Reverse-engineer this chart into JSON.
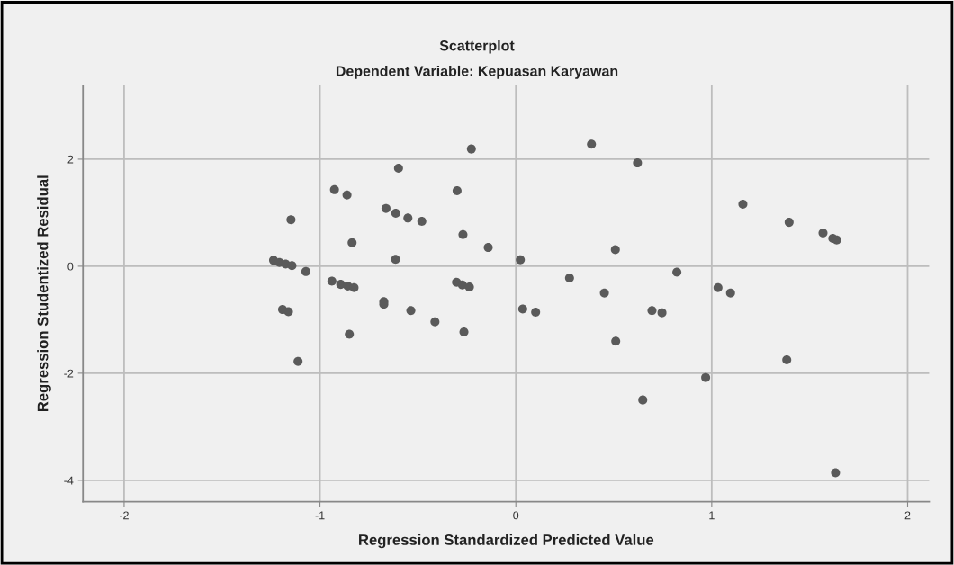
{
  "chart_data": {
    "type": "scatter",
    "title": "Scatterplot",
    "subtitle": "Dependent Variable: Kepuasan Karyawan",
    "xlabel": "Regression Standardized Predicted Value",
    "ylabel": "Regression Studentized Residual",
    "xlim": [
      -2.21,
      2.11
    ],
    "ylim": [
      -4.4,
      3.38
    ],
    "xticks": [
      {
        "value": -2,
        "label": "-2"
      },
      {
        "value": -1,
        "label": "-1"
      },
      0,
      1,
      2
    ],
    "yticks": [
      {
        "value": -4,
        "label": "-4"
      },
      {
        "value": -2,
        "label": "-2"
      },
      0,
      2
    ],
    "grid": true,
    "marker": "circle",
    "series": [
      {
        "color": "#5a5a5a",
        "x": [
          -0.227,
          -0.599,
          -0.926,
          -0.862,
          -0.3,
          -1.148,
          -0.663,
          -0.613,
          -0.551,
          -0.48,
          -0.27,
          -0.141,
          -0.836,
          -0.614,
          -1.237,
          -1.207,
          -1.175,
          -1.143,
          -1.072,
          -0.939,
          -0.894,
          -0.858,
          -0.826,
          -0.674,
          -0.674,
          -0.536,
          -0.413,
          -0.303,
          -0.273,
          -0.237,
          -1.191,
          -1.161,
          -0.85,
          -0.265,
          -1.112,
          0.386,
          0.621,
          1.159,
          1.395,
          1.568,
          1.618,
          1.638,
          0.508,
          0.023,
          0.822,
          0.274,
          0.452,
          1.032,
          1.096,
          0.035,
          0.101,
          0.695,
          0.746,
          0.51,
          1.383,
          0.969,
          0.648,
          1.632
        ],
        "values": [
          2.19,
          1.83,
          1.43,
          1.33,
          1.41,
          0.87,
          1.08,
          0.99,
          0.9,
          0.84,
          0.59,
          0.35,
          0.44,
          0.13,
          0.11,
          0.07,
          0.04,
          0.01,
          -0.1,
          -0.28,
          -0.34,
          -0.37,
          -0.4,
          -0.66,
          -0.71,
          -0.83,
          -1.04,
          -0.3,
          -0.35,
          -0.39,
          -0.81,
          -0.85,
          -1.27,
          -1.23,
          -1.78,
          2.28,
          1.93,
          1.16,
          0.82,
          0.62,
          0.52,
          0.49,
          0.31,
          0.12,
          -0.11,
          -0.22,
          -0.5,
          -0.4,
          -0.5,
          -0.8,
          -0.86,
          -0.83,
          -0.87,
          -1.4,
          -1.75,
          -2.08,
          -2.5,
          -3.86
        ]
      }
    ]
  }
}
